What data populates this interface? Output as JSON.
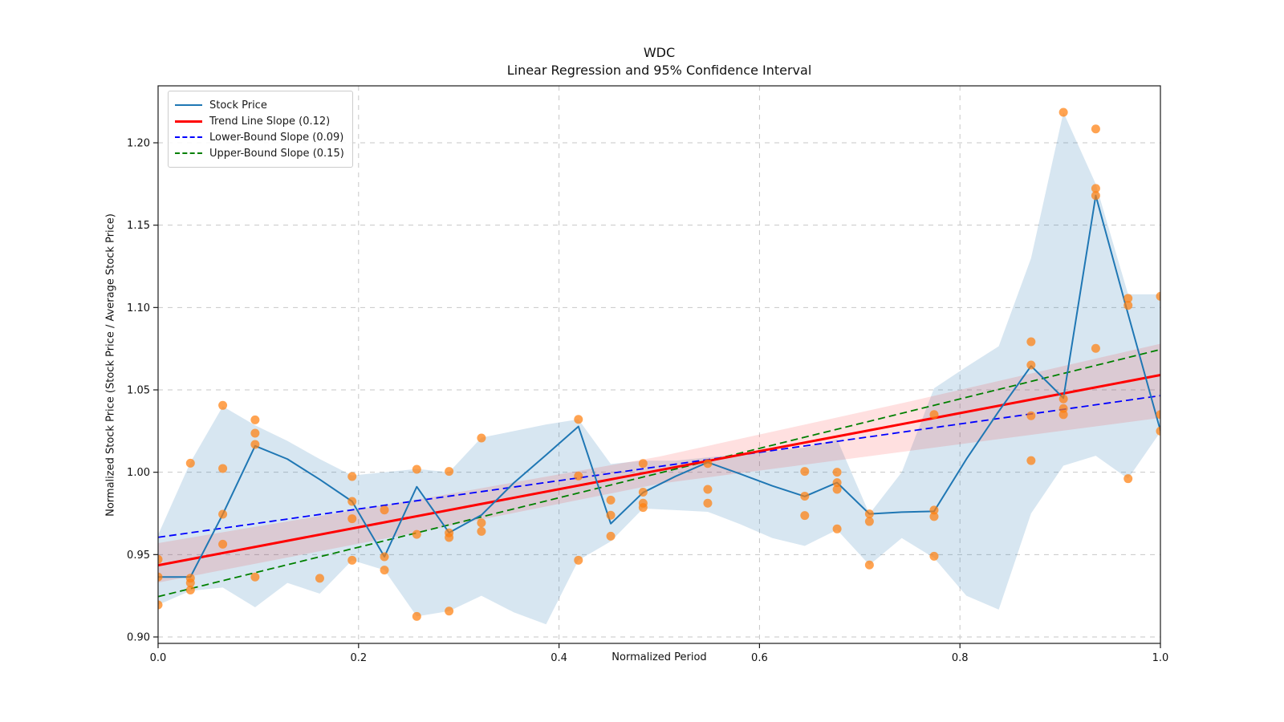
{
  "title": {
    "line1": "WDC",
    "line2": "Linear Regression and 95% Confidence Interval"
  },
  "axes": {
    "xlabel": "Normalized Period",
    "ylabel": "Normalized Stock Price (Stock Price / Average Stock Price)",
    "x_ticks": [
      0.0,
      0.2,
      0.4,
      0.6,
      0.8,
      1.0
    ],
    "x_tick_labels": [
      "0.0",
      "0.2",
      "0.4",
      "0.6",
      "0.8",
      "1.0"
    ],
    "y_ticks": [
      0.9,
      0.95,
      1.0,
      1.05,
      1.1,
      1.15,
      1.2
    ],
    "y_tick_labels": [
      "0.90",
      "0.95",
      "1.00",
      "1.05",
      "1.10",
      "1.15",
      "1.20"
    ],
    "xlim": [
      0.0,
      1.0
    ],
    "ylim": [
      0.896,
      1.2346
    ],
    "grid": true
  },
  "legend": {
    "items": [
      {
        "label": "Stock Price",
        "color": "#1f77b4",
        "dash": "solid",
        "width": 2
      },
      {
        "label": "Trend Line Slope (0.12)",
        "color": "#ff0000",
        "dash": "solid",
        "width": 3
      },
      {
        "label": "Lower-Bound Slope (0.09)",
        "color": "#0000ff",
        "dash": "dashed",
        "width": 2
      },
      {
        "label": "Upper-Bound Slope (0.15)",
        "color": "#008000",
        "dash": "dashed",
        "width": 2
      }
    ]
  },
  "colors": {
    "stock_line": "#1f77b4",
    "scatter": "#ff7f0e",
    "trend": "#ff0000",
    "lower_bound": "#0000ff",
    "upper_bound": "#008000",
    "ci_band_fill": "rgba(31,119,180,0.18)",
    "trend_band_fill": "rgba(255,0,0,0.12)",
    "grid": "#c7c7c7",
    "spine": "#1a1a1a"
  },
  "chart_data": {
    "type": "line",
    "n_points": 32,
    "x_note": "x[i] = i/31, normalized period 0..1",
    "stock_price": [
      0.9364,
      0.9364,
      0.9745,
      1.016,
      1.008,
      0.9956,
      0.9823,
      0.9487,
      0.9912,
      0.9633,
      0.974,
      0.9935,
      1.0105,
      1.0278,
      0.9688,
      0.9877,
      0.9975,
      1.006,
      0.999,
      0.9917,
      0.9853,
      0.9937,
      0.9747,
      0.9758,
      0.9763,
      1.008,
      1.037,
      1.0645,
      1.045,
      1.168,
      1.096,
      1.0253
    ],
    "ci_upper": [
      0.962,
      1.006,
      1.04,
      1.0285,
      1.019,
      1.008,
      0.998,
      1.0,
      1.002,
      1.0,
      1.021,
      1.025,
      1.029,
      1.0321,
      1.005,
      1.007,
      1.007,
      1.009,
      1.011,
      1.013,
      1.015,
      1.02,
      0.9747,
      1.0,
      1.051,
      1.064,
      1.0765,
      1.13,
      1.2185,
      1.175,
      1.108,
      1.108
    ],
    "ci_lower": [
      0.9195,
      0.928,
      0.93,
      0.918,
      0.9328,
      0.9263,
      0.9466,
      0.9406,
      0.9125,
      0.9157,
      0.925,
      0.915,
      0.9077,
      0.9466,
      0.958,
      0.978,
      0.977,
      0.976,
      0.9685,
      0.96,
      0.9553,
      0.965,
      0.9437,
      0.96,
      0.948,
      0.925,
      0.9166,
      0.975,
      1.004,
      1.01,
      0.9961,
      1.0245
    ],
    "scatter_groups": [
      {
        "i": 0,
        "values": [
          0.9471,
          0.9364,
          0.9195
        ]
      },
      {
        "i": 1,
        "values": [
          1.0055,
          0.9357,
          0.9328,
          0.9285
        ]
      },
      {
        "i": 2,
        "values": [
          1.0406,
          1.0023,
          0.9745,
          0.9563
        ]
      },
      {
        "i": 3,
        "values": [
          1.0318,
          1.0237,
          1.0169,
          0.9364
        ]
      },
      {
        "i": 5,
        "values": [
          0.9356
        ]
      },
      {
        "i": 6,
        "values": [
          0.9974,
          0.9823,
          0.9718,
          0.9466
        ]
      },
      {
        "i": 7,
        "values": [
          0.9771,
          0.9487,
          0.9406
        ]
      },
      {
        "i": 8,
        "values": [
          1.0018,
          0.9623,
          0.9125
        ]
      },
      {
        "i": 9,
        "values": [
          1.0005,
          0.9632,
          0.9604,
          0.9157
        ]
      },
      {
        "i": 10,
        "values": [
          1.0208,
          0.9693,
          0.9641
        ]
      },
      {
        "i": 13,
        "values": [
          1.0321,
          0.9977,
          0.9466
        ]
      },
      {
        "i": 14,
        "values": [
          0.9831,
          0.9739,
          0.9612
        ]
      },
      {
        "i": 15,
        "values": [
          1.0053,
          0.9879,
          0.9812,
          0.9786
        ]
      },
      {
        "i": 17,
        "values": [
          1.0053,
          0.9896,
          0.9812
        ]
      },
      {
        "i": 20,
        "values": [
          1.0005,
          0.9855,
          0.9737
        ]
      },
      {
        "i": 21,
        "values": [
          1.0,
          0.9937,
          0.9896,
          0.9656
        ]
      },
      {
        "i": 22,
        "values": [
          0.9747,
          0.9701,
          0.9437
        ]
      },
      {
        "i": 24,
        "values": [
          1.035,
          0.977,
          0.9731,
          0.949
        ]
      },
      {
        "i": 27,
        "values": [
          1.0792,
          1.0651,
          1.0343,
          1.0071
        ]
      },
      {
        "i": 28,
        "values": [
          1.2185,
          1.0445,
          1.0387,
          1.035
        ]
      },
      {
        "i": 29,
        "values": [
          1.2084,
          1.1723,
          1.168,
          1.0752
        ]
      },
      {
        "i": 30,
        "values": [
          1.1056,
          1.1013,
          0.9961
        ]
      },
      {
        "i": 31,
        "values": [
          1.1068,
          1.035,
          1.025
        ]
      }
    ],
    "trend_line": {
      "x0": 0.0,
      "y0": 0.9435,
      "x1": 1.0,
      "y1": 1.059,
      "slope": 0.12
    },
    "lower_bound": {
      "x0": 0.0,
      "y0": 0.9605,
      "x1": 1.0,
      "y1": 1.0465,
      "slope": 0.09
    },
    "upper_bound": {
      "x0": 0.0,
      "y0": 0.9245,
      "x1": 1.0,
      "y1": 1.0745,
      "slope": 0.15
    },
    "trend_ci": {
      "x": [
        0.0,
        0.25,
        0.5,
        0.75,
        1.0
      ],
      "upper": [
        0.957,
        0.9825,
        1.0095,
        1.043,
        1.078
      ],
      "lower": [
        0.933,
        0.9625,
        0.993,
        1.013,
        1.033
      ]
    },
    "legend_position": "upper left"
  }
}
